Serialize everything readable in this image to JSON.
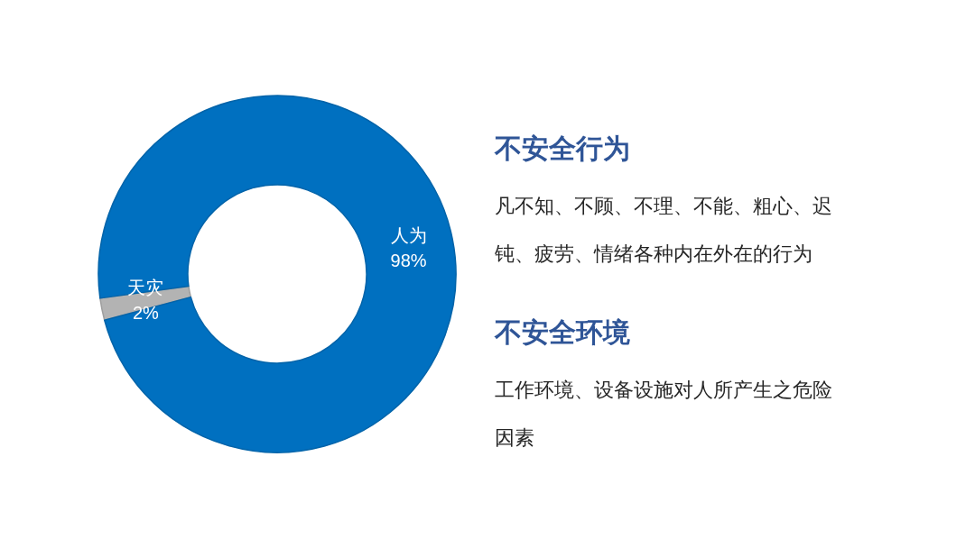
{
  "chart_data": [
    {
      "type": "donut",
      "categories": [
        "天灾",
        "人为"
      ],
      "values": [
        2,
        98
      ],
      "colors": [
        "#b3b3b3",
        "#0070c0"
      ],
      "value_labels": [
        "2%",
        "98%"
      ]
    },
    {
      "type": "other",
      "annotations": [
        "不安全行为",
        "凡不知、不顾、不理、不能、粗心、迟钝、疲劳、情绪各种内在外在的行为",
        "不安全环境",
        "工作环境、设备设施对人所产生之危险因素"
      ]
    }
  ]
}
